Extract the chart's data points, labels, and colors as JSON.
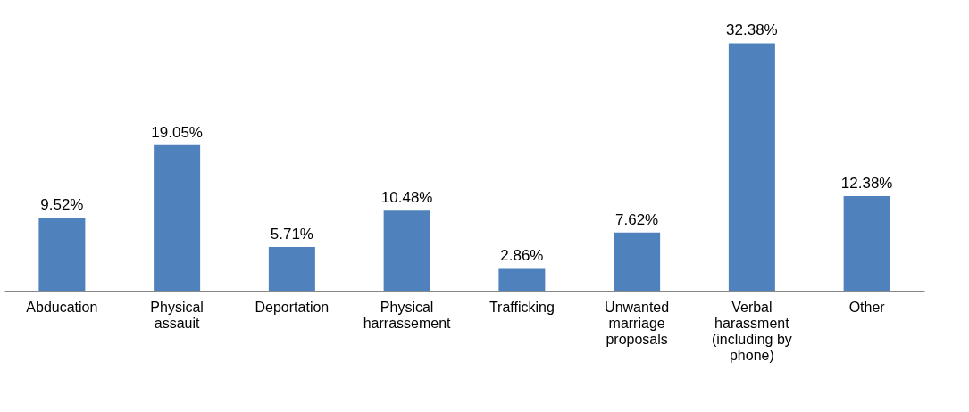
{
  "chart_data": {
    "type": "bar",
    "categories": [
      "Abducation",
      "Physical\nassauit",
      "Deportation",
      "Physical\nharrassement",
      "Trafficking",
      "Unwanted\nmarriage\nproposals",
      "Verbal\nharassment\n(including by\nphone)",
      "Other"
    ],
    "values": [
      9.52,
      19.05,
      5.71,
      10.48,
      2.86,
      7.62,
      32.38,
      12.38
    ],
    "value_labels": [
      "9.52%",
      "19.05%",
      "5.71%",
      "10.48%",
      "2.86%",
      "7.62%",
      "32.38%",
      "12.38%"
    ],
    "color": "#4f81bd"
  }
}
